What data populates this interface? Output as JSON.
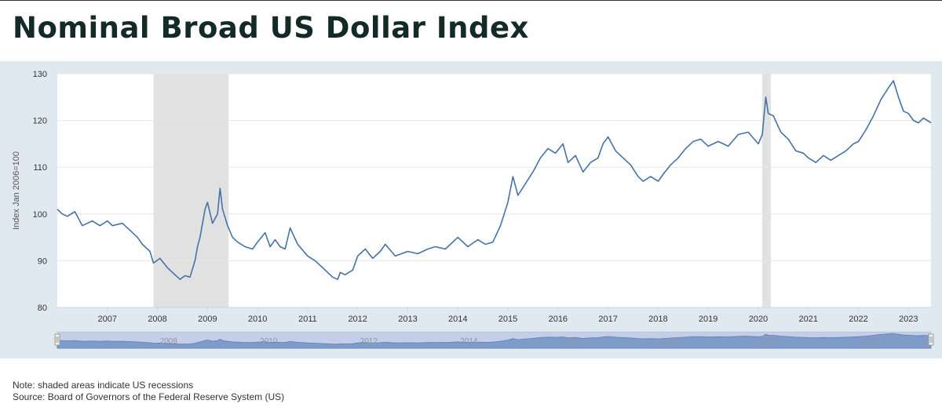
{
  "page": {
    "title": "Nominal Broad US Dollar Index",
    "note": "Note: shaded areas indicate US recessions",
    "source": "Source: Board of Governors of the Federal Reserve System (US)"
  },
  "colors": {
    "line": "#4572a7",
    "recession": "#e1e1e1",
    "panel_background": "#e1e9f0",
    "navigator_band": "#9eb0d8",
    "navigator_area": "#7f9bc9",
    "title": "#132a26"
  },
  "chart_data": {
    "type": "line",
    "title": "",
    "xlabel": "",
    "ylabel": "Index Jan 2006=100",
    "xlim": [
      2006.0,
      2023.45
    ],
    "ylim": [
      80,
      130
    ],
    "yticks": [
      "80",
      "90",
      "100",
      "110",
      "120",
      "130"
    ],
    "xticks": [
      "2007",
      "2008",
      "2009",
      "2010",
      "2011",
      "2012",
      "2013",
      "2014",
      "2015",
      "2016",
      "2017",
      "2018",
      "2019",
      "2020",
      "2021",
      "2022",
      "2023"
    ],
    "grid": true,
    "recessions": [
      [
        2007.92,
        2009.42
      ],
      [
        2020.08,
        2020.25
      ]
    ],
    "navigator_labels": [
      "2008",
      "2010",
      "2012",
      "2014",
      "2016",
      "2018",
      "2020",
      "2022"
    ],
    "x": [
      2006.0,
      2006.1,
      2006.2,
      2006.35,
      2006.5,
      2006.7,
      2006.85,
      2007.0,
      2007.1,
      2007.3,
      2007.5,
      2007.6,
      2007.7,
      2007.85,
      2007.92,
      2008.05,
      2008.2,
      2008.3,
      2008.45,
      2008.55,
      2008.65,
      2008.75,
      2008.8,
      2008.85,
      2008.9,
      2008.95,
      2009.0,
      2009.1,
      2009.2,
      2009.25,
      2009.3,
      2009.4,
      2009.5,
      2009.6,
      2009.75,
      2009.9,
      2010.0,
      2010.15,
      2010.25,
      2010.35,
      2010.45,
      2010.55,
      2010.65,
      2010.8,
      2011.0,
      2011.15,
      2011.3,
      2011.4,
      2011.5,
      2011.6,
      2011.65,
      2011.75,
      2011.9,
      2012.0,
      2012.15,
      2012.3,
      2012.45,
      2012.55,
      2012.75,
      2013.0,
      2013.2,
      2013.4,
      2013.55,
      2013.75,
      2014.0,
      2014.2,
      2014.4,
      2014.55,
      2014.7,
      2014.85,
      2015.0,
      2015.1,
      2015.2,
      2015.35,
      2015.5,
      2015.65,
      2015.8,
      2015.95,
      2016.1,
      2016.2,
      2016.35,
      2016.5,
      2016.65,
      2016.8,
      2016.9,
      2017.0,
      2017.15,
      2017.3,
      2017.45,
      2017.6,
      2017.7,
      2017.85,
      2018.0,
      2018.1,
      2018.25,
      2018.4,
      2018.55,
      2018.7,
      2018.85,
      2019.0,
      2019.2,
      2019.4,
      2019.6,
      2019.8,
      2020.0,
      2020.08,
      2020.15,
      2020.2,
      2020.3,
      2020.45,
      2020.6,
      2020.75,
      2020.9,
      2021.0,
      2021.15,
      2021.3,
      2021.45,
      2021.6,
      2021.75,
      2021.9,
      2022.0,
      2022.15,
      2022.3,
      2022.45,
      2022.6,
      2022.7,
      2022.8,
      2022.9,
      2023.0,
      2023.1,
      2023.2,
      2023.3,
      2023.45
    ],
    "series": [
      {
        "values": [
          101,
          100,
          99.5,
          100.5,
          97.5,
          98.5,
          97.5,
          98.5,
          97.5,
          98,
          96,
          95,
          93.5,
          92,
          89.5,
          90.5,
          88.5,
          87.5,
          86,
          86.8,
          86.5,
          90,
          93,
          95,
          98,
          101,
          102.5,
          98,
          100,
          105.5,
          101,
          97.5,
          95,
          94,
          93,
          92.5,
          94,
          96,
          93,
          94.5,
          93,
          92.5,
          97,
          93.5,
          91,
          90,
          88.5,
          87.5,
          86.5,
          86,
          87.5,
          87,
          88,
          91,
          92.5,
          90.5,
          92,
          93.5,
          91,
          92,
          91.5,
          92.5,
          93,
          92.5,
          95,
          93,
          94.5,
          93.5,
          94,
          97.5,
          102.5,
          108,
          104,
          106.5,
          109,
          112,
          114,
          113,
          115,
          111,
          112.5,
          109,
          111,
          112,
          115,
          116.5,
          113.5,
          112,
          110.5,
          108,
          107,
          108,
          107,
          108.5,
          110.5,
          112,
          114,
          115.5,
          116,
          114.5,
          115.5,
          114.5,
          117,
          117.5,
          115,
          117,
          125,
          121.5,
          121,
          117.5,
          116,
          113.5,
          113,
          112,
          111,
          112.5,
          111.5,
          112.5,
          113.5,
          115,
          115.5,
          118,
          121,
          124.5,
          127,
          128.5,
          125,
          122,
          121.5,
          120,
          119.5,
          120.5,
          119.5
        ]
      }
    ]
  }
}
